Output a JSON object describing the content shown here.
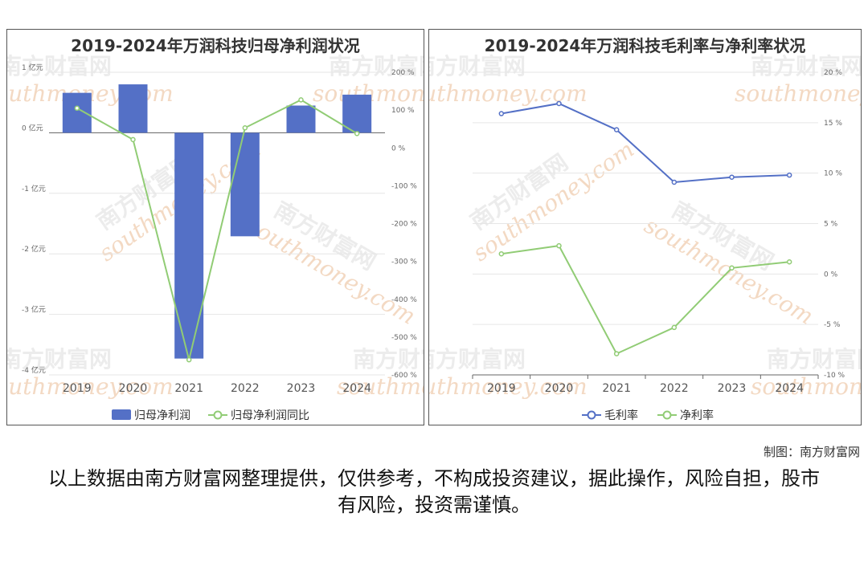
{
  "left_chart": {
    "title": "2019-2024年万润科技归母净利润状况",
    "chart_data": {
      "type": "bar",
      "categories": [
        "2019",
        "2020",
        "2021",
        "2022",
        "2023",
        "2024"
      ],
      "series": [
        {
          "name": "归母净利润",
          "type": "bar",
          "axis": "left",
          "values": [
            0.66,
            0.8,
            -3.73,
            -1.71,
            0.45,
            0.63
          ]
        },
        {
          "name": "归母净利润同比",
          "type": "line",
          "axis": "right",
          "values": [
            105,
            22,
            -560,
            53,
            127,
            38
          ]
        }
      ],
      "y_left": {
        "ticks": [
          "1 亿元",
          "0 亿元",
          "-1 亿元",
          "-2 亿元",
          "-3 亿元",
          "-4 亿元"
        ],
        "range": [
          -4,
          1
        ]
      },
      "y_right": {
        "ticks": [
          "200 %",
          "100 %",
          "0 %",
          "-100 %",
          "-200 %",
          "-300 %",
          "-400 %",
          "-500 %",
          "-600 %"
        ],
        "range": [
          -600,
          200
        ]
      },
      "colors": {
        "bar": "#5470c6",
        "line": "#91cc75"
      }
    }
  },
  "right_chart": {
    "title": "2019-2024年万润科技毛利率与净利率状况",
    "chart_data": {
      "type": "line",
      "categories": [
        "2019",
        "2020",
        "2021",
        "2022",
        "2023",
        "2024"
      ],
      "series": [
        {
          "name": "毛利率",
          "values": [
            15.9,
            16.9,
            14.3,
            9.1,
            9.6,
            9.8
          ]
        },
        {
          "name": "净利率",
          "values": [
            2.0,
            2.8,
            -7.9,
            -5.3,
            0.6,
            1.2
          ]
        }
      ],
      "y": {
        "ticks": [
          "20 %",
          "15 %",
          "10 %",
          "5 %",
          "0 %",
          "-5 %",
          "-10 %"
        ],
        "range": [
          -10,
          20
        ]
      },
      "colors": {
        "gross": "#5470c6",
        "net": "#91cc75"
      }
    }
  },
  "watermark": {
    "cn": "南方财富网",
    "en": "southmoney.com"
  },
  "credit": "制图：南方财富网",
  "disclaimer": "以上数据由南方财富网整理提供，仅供参考，不构成投资建议，据此操作，风险自担，股市有风险，投资需谨慎。"
}
